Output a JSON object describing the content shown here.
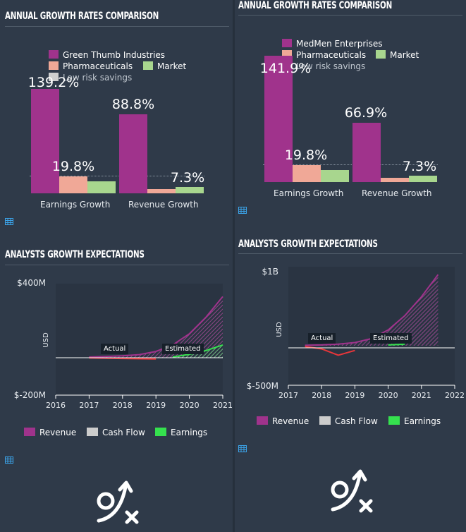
{
  "colors": {
    "company": "#a0338c",
    "industry": "#f0a897",
    "market": "#a8d68e",
    "revenue": "#a0338c",
    "cashflow": "#cccccc",
    "earnings": "#35e14e",
    "loss": "#e8363a",
    "low_risk": "#cfcfcf"
  },
  "icons": [
    "table-icon",
    "growth-logo-icon"
  ],
  "panels": [
    {
      "growth_title": "ANNUAL GROWTH RATES COMPARISON",
      "legend": {
        "company": "Green Thumb Industries",
        "industry": "Pharmaceuticals",
        "market": "Market",
        "low_risk": "Low risk savings"
      },
      "categories": [
        "Earnings Growth",
        "Revenue Growth"
      ],
      "value_labels": [
        "139.2%",
        "19.8%",
        "88.8%",
        "7.3%"
      ],
      "analysts_title": "ANALYSTS GROWTH EXPECTATIONS",
      "y_top_label": "$400M",
      "y_bottom_label": "$-200M",
      "y_axis_label": "USD",
      "x_ticks": [
        "2016",
        "2017",
        "2018",
        "2019",
        "2020",
        "2021"
      ],
      "actual_label": "Actual",
      "estimated_label": "Estimated",
      "legend2": {
        "revenue": "Revenue",
        "cashflow": "Cash Flow",
        "earnings": "Earnings"
      }
    },
    {
      "growth_title": "ANNUAL GROWTH RATES COMPARISON",
      "legend": {
        "company": "MedMen Enterprises",
        "industry": "Pharmaceuticals",
        "market": "Market",
        "low_risk": "Low risk savings"
      },
      "categories": [
        "Earnings Growth",
        "Revenue Growth"
      ],
      "value_labels": [
        "141.9%",
        "19.8%",
        "66.9%",
        "7.3%"
      ],
      "analysts_title": "ANALYSTS GROWTH EXPECTATIONS",
      "y_top_label": "$1B",
      "y_bottom_label": "$-500M",
      "y_axis_label": "USD",
      "x_ticks": [
        "2017",
        "2018",
        "2019",
        "2020",
        "2021",
        "2022"
      ],
      "actual_label": "Actual",
      "estimated_label": "Estimated",
      "legend2": {
        "revenue": "Revenue",
        "cashflow": "Cash Flow",
        "earnings": "Earnings"
      }
    }
  ],
  "chart_data": [
    {
      "type": "bar",
      "title": "ANNUAL GROWTH RATES COMPARISON",
      "categories": [
        "Earnings Growth",
        "Revenue Growth"
      ],
      "series": [
        {
          "name": "Green Thumb Industries",
          "values": [
            139.2,
            88.8
          ]
        },
        {
          "name": "Pharmaceuticals",
          "values": [
            19.8,
            4.5
          ]
        },
        {
          "name": "Market",
          "values": [
            13.5,
            7.3
          ]
        }
      ],
      "reference_lines": [
        {
          "name": "Low risk savings",
          "value": 19
        }
      ]
    },
    {
      "type": "area",
      "title": "ANALYSTS GROWTH EXPECTATIONS",
      "ylabel": "USD",
      "x_range": [
        2016,
        2021
      ],
      "ylim": [
        -200,
        400
      ],
      "y_units": "$M",
      "actual_until": 2019.2,
      "series": [
        {
          "name": "Revenue",
          "x": [
            2017,
            2017.5,
            2018,
            2018.5,
            2019,
            2019.5,
            2020,
            2020.5,
            2021
          ],
          "values": [
            5,
            8,
            12,
            18,
            35,
            70,
            130,
            220,
            330
          ]
        },
        {
          "name": "Cash Flow",
          "x": [
            2017,
            2018,
            2019
          ],
          "values": [
            0,
            -3,
            -5
          ]
        },
        {
          "name": "Earnings",
          "x": [
            2017,
            2017.5,
            2018,
            2018.5,
            2019,
            2019.5,
            2020,
            2020.5,
            2021
          ],
          "values": [
            -5,
            -8,
            -12,
            -8,
            -5,
            5,
            20,
            40,
            70
          ]
        }
      ]
    },
    {
      "type": "bar",
      "title": "ANNUAL GROWTH RATES COMPARISON",
      "categories": [
        "Earnings Growth",
        "Revenue Growth"
      ],
      "series": [
        {
          "name": "MedMen Enterprises",
          "values": [
            141.9,
            66.9
          ]
        },
        {
          "name": "Pharmaceuticals",
          "values": [
            19.8,
            4.5
          ]
        },
        {
          "name": "Market",
          "values": [
            13.5,
            7.3
          ]
        }
      ],
      "reference_lines": [
        {
          "name": "Low risk savings",
          "value": 19
        }
      ]
    },
    {
      "type": "area",
      "title": "ANALYSTS GROWTH EXPECTATIONS",
      "ylabel": "USD",
      "x_range": [
        2017,
        2022
      ],
      "ylim": [
        -500,
        1000
      ],
      "y_units": "$M",
      "actual_until": 2019.5,
      "series": [
        {
          "name": "Revenue",
          "x": [
            2017.5,
            2018,
            2018.5,
            2019,
            2019.5,
            2020,
            2020.5,
            2021,
            2021.5
          ],
          "values": [
            5,
            10,
            20,
            40,
            90,
            200,
            380,
            620,
            900
          ]
        },
        {
          "name": "Cash Flow",
          "x": [
            2017.5,
            2018,
            2018.5,
            2019
          ],
          "values": [
            -10,
            -40,
            -120,
            -60
          ]
        },
        {
          "name": "Earnings",
          "x": [
            2017.5,
            2018,
            2018.5,
            2019,
            2019.5,
            2020,
            2020.5
          ],
          "values": [
            -10,
            -30,
            -100,
            -50,
            -10,
            10,
            20
          ]
        }
      ]
    }
  ]
}
